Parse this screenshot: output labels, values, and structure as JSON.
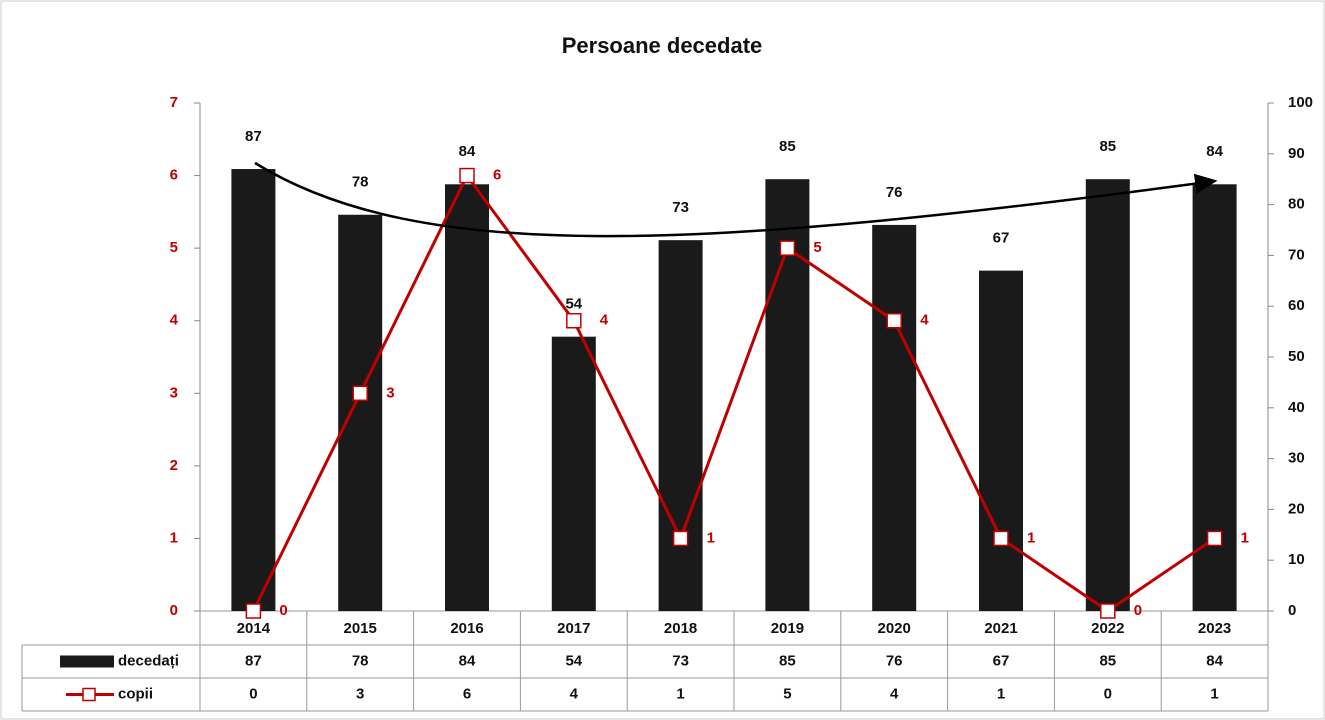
{
  "chart_data": {
    "type": "bar-line",
    "title": "Persoane decedate",
    "categories": [
      "2014",
      "2015",
      "2016",
      "2017",
      "2018",
      "2019",
      "2020",
      "2021",
      "2022",
      "2023"
    ],
    "series": [
      {
        "name": "decedați",
        "type": "bar",
        "axis": "y2",
        "color": "#1a1a1a",
        "values": [
          87,
          78,
          84,
          54,
          73,
          85,
          76,
          67,
          85,
          84
        ]
      },
      {
        "name": "copii",
        "type": "line",
        "color": "#c00000",
        "values": [
          0,
          3,
          6,
          4,
          1,
          5,
          4,
          1,
          0,
          1
        ]
      }
    ],
    "ylim": [
      0,
      7
    ],
    "yticks": [
      0,
      1,
      2,
      3,
      4,
      5,
      6,
      7
    ],
    "y2lim": [
      0,
      100
    ],
    "y2ticks": [
      0,
      10,
      20,
      30,
      40,
      50,
      60,
      70,
      80,
      90,
      100
    ]
  }
}
